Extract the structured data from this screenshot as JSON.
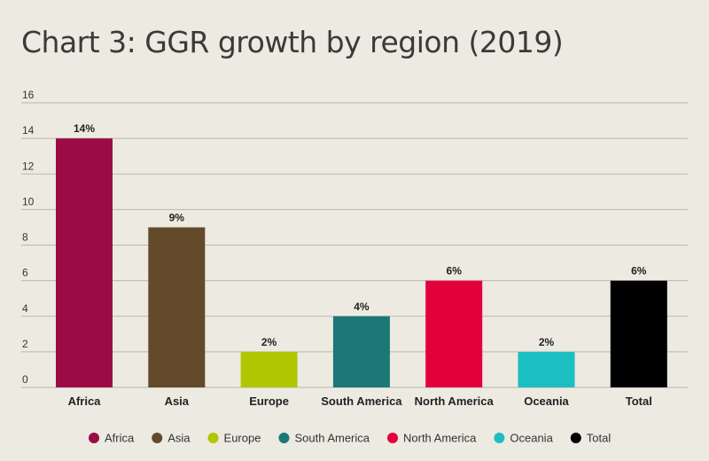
{
  "chart_data": {
    "type": "bar",
    "title": "Chart 3: GGR growth by region (2019)",
    "categories": [
      "Africa",
      "Asia",
      "Europe",
      "South America",
      "North America",
      "Oceania",
      "Total"
    ],
    "values": [
      14,
      9,
      2,
      4,
      6,
      2,
      6
    ],
    "data_labels": [
      "14%",
      "9%",
      "2%",
      "4%",
      "6%",
      "2%",
      "6%"
    ],
    "colors": [
      "#9b0b45",
      "#634a2b",
      "#b1c600",
      "#1b7877",
      "#e4003b",
      "#1cbfc1",
      "#000000"
    ],
    "ylim": [
      0,
      16
    ],
    "yticks": [
      0,
      2,
      4,
      6,
      8,
      10,
      12,
      14,
      16
    ],
    "xlabel": "",
    "ylabel": "",
    "grid": true,
    "legend": {
      "position": "bottom",
      "entries": [
        "Africa",
        "Asia",
        "Europe",
        "South America",
        "North America",
        "Oceania",
        "Total"
      ]
    }
  }
}
